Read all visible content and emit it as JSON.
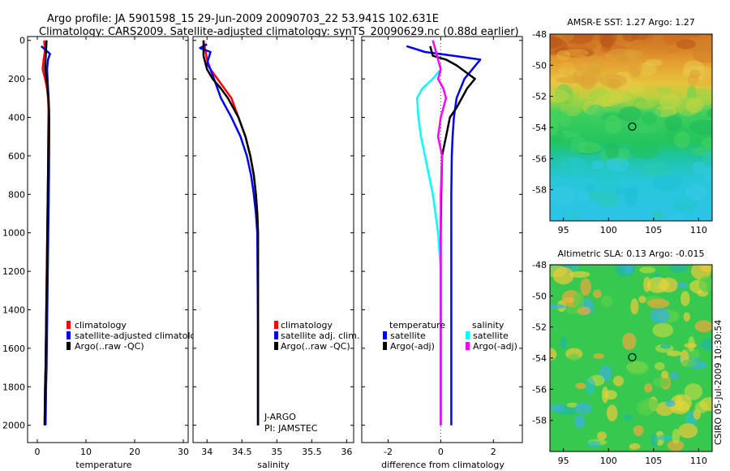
{
  "title": {
    "line1": "Argo profile: JA 5901598_15 29-Jun-2009 20090703_22 53.941S 102.631E",
    "line2": "Climatology: CARS2009. Satellite-adjusted climatology: synTS_20090629.nc (0.88d earlier)"
  },
  "colors": {
    "climatology": "#ff0000",
    "satellite": "#0000ff",
    "argo": "#000000",
    "sat_diff_salinity": "#00ffff",
    "argo_diff_salinity": "#ff00ff"
  },
  "depth_axis": {
    "ticks": [
      0,
      200,
      400,
      600,
      800,
      1000,
      1200,
      1400,
      1600,
      1800,
      2000
    ],
    "range": [
      -20,
      2090
    ]
  },
  "chart_data": [
    {
      "id": "temperature",
      "type": "line",
      "xlabel": "temperature",
      "ylabel": "depth",
      "xlim": [
        -2,
        31
      ],
      "xticks": [
        0,
        10,
        20,
        30
      ],
      "legend": [
        "climatology",
        "satellite-adjusted climatology",
        "Argo(..raw -QC)"
      ],
      "series": [
        {
          "name": "climatology",
          "color": "#ff0000",
          "x": [
            1.4,
            1.6,
            1.3,
            1.1,
            1.6,
            2.0,
            2.2,
            2.3,
            2.3,
            2.25,
            2.2,
            2.1,
            2.0,
            1.9,
            1.8,
            1.7,
            1.6,
            1.55,
            1.5
          ],
          "y": [
            0,
            50,
            100,
            150,
            200,
            250,
            300,
            350,
            400,
            500,
            700,
            900,
            1100,
            1300,
            1500,
            1700,
            1800,
            1900,
            2000
          ]
        },
        {
          "name": "satellite-adjusted climatology",
          "color": "#0000ff",
          "x": [
            0.8,
            2.6,
            2.2,
            2.0,
            2.1,
            2.2,
            2.3,
            2.4,
            2.45,
            2.45,
            2.4,
            2.3,
            2.2,
            2.1,
            2.0,
            1.9,
            1.8,
            1.75,
            1.7
          ],
          "y": [
            30,
            70,
            100,
            150,
            200,
            250,
            300,
            350,
            400,
            500,
            700,
            900,
            1100,
            1300,
            1500,
            1700,
            1800,
            1900,
            2000
          ]
        },
        {
          "name": "Argo(..raw -QC)",
          "color": "#000000",
          "x": [
            1.9,
            1.8,
            1.7,
            1.6,
            1.9,
            2.1,
            2.3,
            2.35,
            2.3,
            2.2,
            2.1,
            2.0,
            1.9,
            1.8,
            1.7,
            1.6,
            1.55,
            1.5
          ],
          "y": [
            0,
            50,
            100,
            150,
            200,
            250,
            300,
            350,
            500,
            700,
            900,
            1100,
            1300,
            1500,
            1700,
            1800,
            1900,
            2000
          ]
        }
      ]
    },
    {
      "id": "salinity",
      "type": "line",
      "xlabel": "salinity",
      "ylabel": "depth",
      "xlim": [
        33.8,
        36.1
      ],
      "xticks": [
        34,
        34.5,
        35,
        35.5,
        36
      ],
      "legend": [
        "climatology",
        "satellite adj. clim.",
        "Argo(..raw -QC)"
      ],
      "annotation": [
        "J-ARGO",
        "PI: JAMSTEC"
      ],
      "series": [
        {
          "name": "climatology",
          "color": "#ff0000",
          "x": [
            33.95,
            34.0,
            34.05,
            34.15,
            34.25,
            34.35,
            34.45,
            34.55,
            34.62,
            34.67,
            34.7,
            34.72,
            34.73,
            34.73,
            34.73
          ],
          "y": [
            0,
            100,
            150,
            200,
            250,
            300,
            400,
            500,
            600,
            700,
            800,
            900,
            1000,
            1500,
            2000
          ]
        },
        {
          "name": "satellite adj. clim.",
          "color": "#0000ff",
          "x": [
            34.0,
            33.9,
            34.05,
            34.0,
            34.05,
            34.1,
            34.2,
            34.35,
            34.48,
            34.57,
            34.63,
            34.67,
            34.7,
            34.72,
            34.73,
            34.73
          ],
          "y": [
            20,
            40,
            60,
            120,
            150,
            200,
            300,
            400,
            500,
            600,
            700,
            800,
            900,
            1000,
            1500,
            2000
          ]
        },
        {
          "name": "Argo(..raw -QC)",
          "color": "#000000",
          "x": [
            33.95,
            33.95,
            34.0,
            34.08,
            34.2,
            34.3,
            34.45,
            34.55,
            34.62,
            34.67,
            34.7,
            34.72,
            34.73,
            34.73,
            34.73
          ],
          "y": [
            0,
            80,
            150,
            200,
            250,
            300,
            400,
            500,
            600,
            700,
            800,
            900,
            1000,
            1500,
            2000
          ]
        }
      ]
    },
    {
      "id": "difference",
      "type": "line",
      "xlabel": "difference from climatology",
      "ylabel": "depth",
      "xlim": [
        -3,
        3.1
      ],
      "xticks": [
        -2,
        0,
        2
      ],
      "legend": {
        "temperature_heading": "temperature",
        "salinity_heading": "salinity",
        "temperature": [
          "satellite",
          "Argo(-adj)"
        ],
        "salinity": [
          "satellite",
          "Argo(-adj)"
        ]
      },
      "series": [
        {
          "name": "temperature satellite",
          "color": "#0000ff",
          "x": [
            -1.3,
            -0.6,
            0.5,
            1.5,
            1.2,
            0.9,
            0.6,
            0.5,
            0.45,
            0.42,
            0.4,
            0.4,
            0.4,
            0.4,
            0.4
          ],
          "y": [
            30,
            60,
            80,
            100,
            150,
            200,
            300,
            400,
            500,
            600,
            800,
            1000,
            1500,
            1800,
            2000
          ]
        },
        {
          "name": "temperature Argo(-adj)",
          "color": "#000000",
          "x": [
            -0.4,
            -0.3,
            0.2,
            0.6,
            1.3,
            1.0,
            0.6,
            0.35,
            0.2,
            0.05,
            0.02,
            0.0,
            0.0,
            0.0
          ],
          "y": [
            30,
            80,
            100,
            130,
            200,
            250,
            350,
            400,
            500,
            600,
            800,
            1000,
            1500,
            2000
          ]
        },
        {
          "name": "salinity satellite",
          "color": "#00ffff",
          "x": [
            0.0,
            -0.3,
            -0.7,
            -0.9,
            -0.85,
            -0.75,
            -0.6,
            -0.45,
            -0.3,
            -0.1,
            0.0,
            0.0
          ],
          "y": [
            150,
            200,
            250,
            300,
            400,
            500,
            600,
            700,
            800,
            1000,
            1200,
            2000
          ]
        },
        {
          "name": "salinity Argo(-adj)",
          "color": "#ff00ff",
          "x": [
            -0.3,
            -0.2,
            -0.1,
            0.0,
            -0.1,
            0.1,
            0.2,
            0.0,
            -0.1,
            0.05,
            0.0,
            0.0
          ],
          "y": [
            0,
            50,
            100,
            150,
            200,
            250,
            300,
            400,
            500,
            600,
            800,
            2000
          ]
        }
      ]
    },
    {
      "id": "sst-map",
      "type": "heatmap",
      "title": "AMSR-E SST: 1.27  Argo: 1.27",
      "xticks": [
        95,
        100,
        105,
        110
      ],
      "yticks": [
        -48,
        -50,
        -52,
        -54,
        -56,
        -58
      ],
      "xlim": [
        93.5,
        111.5
      ],
      "ylim": [
        -60,
        -48
      ],
      "marker": {
        "lon": 102.631,
        "lat": -53.941
      }
    },
    {
      "id": "sla-map",
      "type": "heatmap",
      "title": "Altimetric SLA: 0.13  Argo: -0.015",
      "xticks": [
        95,
        100,
        105,
        110
      ],
      "yticks": [
        -48,
        -50,
        -52,
        -54,
        -56,
        -58
      ],
      "xlim": [
        93.5,
        111.5
      ],
      "ylim": [
        -60,
        -48
      ],
      "marker": {
        "lon": 102.631,
        "lat": -53.941
      },
      "side_label": "CSIRO 05-Jul-2009 10:30:54"
    }
  ]
}
